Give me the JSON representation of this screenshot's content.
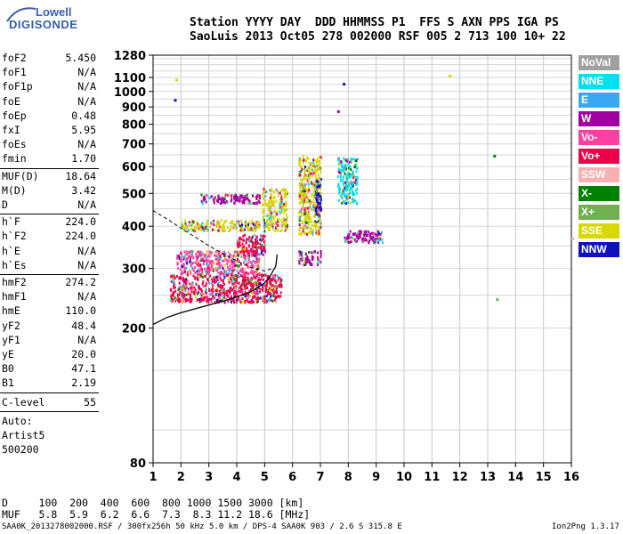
{
  "logo": {
    "top": "Lowell",
    "bottom": "DIGISONDE"
  },
  "header": {
    "line1": "Station YYYY DAY  DDD HHMMSS P1  FFS S AXN PPS IGA PS",
    "line2": "SaoLuis 2013 Oct05 278 002000 RSF 005 2 713 100 10+ 22"
  },
  "params_a": [
    {
      "name": "foF2",
      "value": "5.450"
    },
    {
      "name": "foF1",
      "value": "N/A"
    },
    {
      "name": "foF1p",
      "value": "N/A"
    },
    {
      "name": "foE",
      "value": "N/A"
    },
    {
      "name": "foEp",
      "value": "0.48"
    },
    {
      "name": "fxI",
      "value": "5.95"
    },
    {
      "name": "foEs",
      "value": "N/A"
    },
    {
      "name": "fmin",
      "value": "1.70"
    }
  ],
  "params_b": [
    {
      "name": "MUF(D)",
      "value": "18.64"
    },
    {
      "name": "M(D)",
      "value": "3.42"
    },
    {
      "name": "D",
      "value": "N/A"
    }
  ],
  "params_c": [
    {
      "name": "h`F",
      "value": "224.0"
    },
    {
      "name": "h`F2",
      "value": "224.0"
    },
    {
      "name": "h`E",
      "value": "N/A"
    },
    {
      "name": "h`Es",
      "value": "N/A"
    }
  ],
  "params_d": [
    {
      "name": "hmF2",
      "value": "274.2"
    },
    {
      "name": "hmF1",
      "value": "N/A"
    },
    {
      "name": "hmE",
      "value": "110.0"
    },
    {
      "name": "yF2",
      "value": "48.4"
    },
    {
      "name": "yF1",
      "value": "N/A"
    },
    {
      "name": "yE",
      "value": "20.0"
    },
    {
      "name": "B0",
      "value": "47.1"
    },
    {
      "name": "B1",
      "value": "2.19"
    }
  ],
  "clevel": {
    "name": "C-level",
    "value": "55"
  },
  "auto": [
    "Auto:",
    "Artist5",
    "500200"
  ],
  "legend": [
    {
      "label": "NoVal",
      "color": "#a0a0a0"
    },
    {
      "label": "NNE",
      "color": "#00e0f0"
    },
    {
      "label": "E",
      "color": "#3aa8f0"
    },
    {
      "label": "W",
      "color": "#a000a0"
    },
    {
      "label": "Vo-",
      "color": "#ff40a0"
    },
    {
      "label": "Vo+",
      "color": "#f0004a"
    },
    {
      "label": "SSW",
      "color": "#f8b0b0"
    },
    {
      "label": "X-",
      "color": "#008000"
    },
    {
      "label": "X+",
      "color": "#70b050"
    },
    {
      "label": "SSE",
      "color": "#d8d800"
    },
    {
      "label": "NNW",
      "color": "#1010c0"
    }
  ],
  "bottom": {
    "dist_row": "D     100  200  400  600  800 1000 1500 3000 [km]",
    "muf_row": "MUF   5.8  5.9  6.2  6.6  7.3  8.3 11.2 18.6 [MHz]"
  },
  "footer": "SAA0K_2013278002000.RSF / 300fx256h 50 kHz 5.0 km / DPS-4 SAA0K 903 / 2.6 S 315.8 E",
  "version": "Ion2Png 1.3.17",
  "chart_data": {
    "type": "scatter",
    "xlabel": "",
    "ylabel": "",
    "xlim": [
      1,
      16
    ],
    "ylim": [
      80,
      1280
    ],
    "yscale": "log",
    "x_ticks": [
      1,
      2,
      3,
      4,
      5,
      6,
      7,
      8,
      9,
      10,
      11,
      12,
      13,
      14,
      15,
      16
    ],
    "y_ticks": [
      80,
      200,
      300,
      400,
      500,
      600,
      700,
      800,
      900,
      1000,
      1100,
      1280
    ],
    "grid": true,
    "trace_curve": {
      "name": "",
      "x": [
        1.0,
        1.5,
        2.0,
        2.5,
        3.0,
        3.5,
        4.0,
        4.5,
        5.0,
        5.2,
        5.4,
        5.45
      ],
      "y": [
        205,
        215,
        222,
        228,
        234,
        240,
        247,
        256,
        272,
        285,
        305,
        330
      ]
    },
    "model_curve_upper": {
      "x": [
        1.0,
        1.5,
        2.0,
        2.5,
        3.0,
        3.5,
        4.0,
        4.5,
        5.0,
        5.3
      ],
      "y": [
        445,
        420,
        395,
        372,
        350,
        332,
        316,
        302,
        295,
        300
      ]
    },
    "echo_clusters": [
      {
        "x": [
          1.6,
          5.6
        ],
        "y": [
          240,
          290
        ],
        "dominant": "Vo+"
      },
      {
        "x": [
          1.8,
          4.8
        ],
        "y": [
          290,
          340
        ],
        "dominant": "Vo-"
      },
      {
        "x": [
          4.0,
          5.0
        ],
        "y": [
          330,
          380
        ],
        "dominant": "Vo+"
      },
      {
        "x": [
          2.0,
          4.8
        ],
        "y": [
          390,
          420
        ],
        "dominant": "SSE"
      },
      {
        "x": [
          2.7,
          4.8
        ],
        "y": [
          470,
          500
        ],
        "dominant": "W"
      },
      {
        "x": [
          4.9,
          5.8
        ],
        "y": [
          390,
          520
        ],
        "dominant": "SSE"
      },
      {
        "x": [
          6.2,
          7.0
        ],
        "y": [
          380,
          650
        ],
        "dominant": "SSE"
      },
      {
        "x": [
          6.8,
          7.0
        ],
        "y": [
          430,
          560
        ],
        "dominant": "NNW"
      },
      {
        "x": [
          7.6,
          8.3
        ],
        "y": [
          470,
          640
        ],
        "dominant": "NNE"
      },
      {
        "x": [
          7.8,
          9.2
        ],
        "y": [
          360,
          390
        ],
        "dominant": "W"
      },
      {
        "x": [
          6.2,
          7.0
        ],
        "y": [
          310,
          340
        ],
        "dominant": "W"
      }
    ],
    "isolated_points": [
      {
        "x": 1.75,
        "y": 950,
        "code": "NNW"
      },
      {
        "x": 1.8,
        "y": 1090,
        "code": "SSE"
      },
      {
        "x": 7.8,
        "y": 1060,
        "code": "NNW"
      },
      {
        "x": 7.6,
        "y": 880,
        "code": "W"
      },
      {
        "x": 11.6,
        "y": 1120,
        "code": "SSE"
      },
      {
        "x": 13.2,
        "y": 650,
        "code": "X-"
      },
      {
        "x": 13.3,
        "y": 245,
        "code": "X+"
      },
      {
        "x": 16,
        "y": 370,
        "code": "SSW"
      }
    ]
  }
}
